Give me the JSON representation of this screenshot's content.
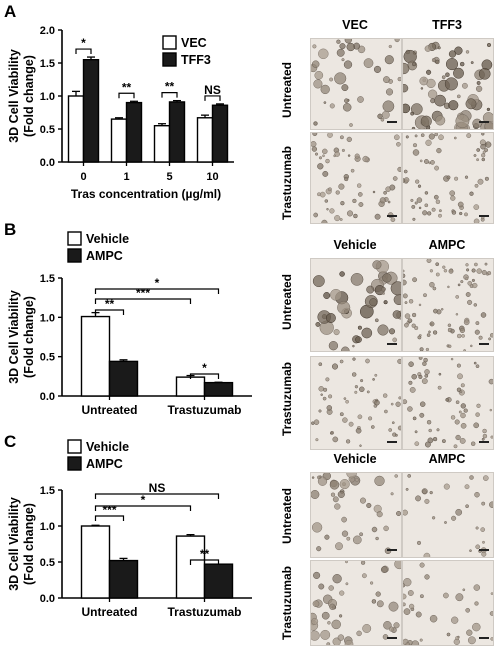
{
  "panels": [
    {
      "id": "A",
      "letter": "A",
      "chart_index": 0,
      "photo": {
        "cols": [
          "VEC",
          "TFF3"
        ],
        "rows": [
          "Untreated",
          "Trastuzumab"
        ]
      }
    },
    {
      "id": "B",
      "letter": "B",
      "chart_index": 1,
      "photo": {
        "cols": [
          "Vehicle",
          "AMPC"
        ],
        "rows": [
          "Untreated",
          "Trastuzumab"
        ]
      }
    },
    {
      "id": "C",
      "letter": "C",
      "chart_index": 2,
      "photo": {
        "cols": [
          "Vehicle",
          "AMPC"
        ],
        "rows": [
          "Untreated",
          "Trastuzumab"
        ]
      }
    }
  ],
  "chart_data": [
    {
      "type": "bar",
      "title": "",
      "ylabel": "3D Cell Viability\n(Fold change)",
      "xlabel": "Tras concentration (µg/ml)",
      "categories": [
        "0",
        "1",
        "5",
        "10"
      ],
      "ylim": [
        0,
        2.0
      ],
      "yticks": [
        0.0,
        0.5,
        1.0,
        1.5,
        2.0
      ],
      "legend_position": "top-right",
      "series": [
        {
          "name": "VEC",
          "color": "#ffffff",
          "values": [
            1.0,
            0.65,
            0.55,
            0.67
          ],
          "errors": [
            0.07,
            0.02,
            0.03,
            0.04
          ]
        },
        {
          "name": "TFF3",
          "color": "#1a1a1a",
          "values": [
            1.55,
            0.9,
            0.91,
            0.86
          ],
          "errors": [
            0.04,
            0.02,
            0.02,
            0.02
          ]
        }
      ],
      "annotations": [
        {
          "text": "*",
          "category": "0"
        },
        {
          "text": "**",
          "category": "1"
        },
        {
          "text": "**",
          "category": "5"
        },
        {
          "text": "NS",
          "category": "10"
        }
      ]
    },
    {
      "type": "bar",
      "title": "",
      "ylabel": "3D Cell Viability\n(Fold change)",
      "xlabel": "",
      "categories": [
        "Untreated",
        "Trastuzumab"
      ],
      "ylim": [
        0,
        1.5
      ],
      "yticks": [
        0.0,
        0.5,
        1.0,
        1.5
      ],
      "legend_position": "top-left",
      "series": [
        {
          "name": "Vehicle",
          "color": "#ffffff",
          "values": [
            1.01,
            0.24
          ],
          "errors": [
            0.05,
            0.02
          ]
        },
        {
          "name": "AMPC",
          "color": "#1a1a1a",
          "values": [
            0.44,
            0.17
          ],
          "errors": [
            0.02,
            0.005
          ]
        }
      ],
      "annotations": [
        {
          "text": "**",
          "from": "Untreated-Vehicle",
          "to": "Untreated-AMPC"
        },
        {
          "text": "***",
          "from": "Untreated-Vehicle",
          "to": "Trastuzumab-Vehicle"
        },
        {
          "text": "*",
          "from": "Untreated-Vehicle",
          "to": "Trastuzumab-AMPC"
        },
        {
          "text": "*",
          "from": "Trastuzumab-Vehicle",
          "to": "Trastuzumab-AMPC"
        }
      ]
    },
    {
      "type": "bar",
      "title": "",
      "ylabel": "3D Cell Viability\n(Fold change)",
      "xlabel": "",
      "categories": [
        "Untreated",
        "Trastuzumab"
      ],
      "ylim": [
        0,
        1.5
      ],
      "yticks": [
        0.0,
        0.5,
        1.0,
        1.5
      ],
      "legend_position": "top-left",
      "series": [
        {
          "name": "Vehicle",
          "color": "#ffffff",
          "values": [
            1.0,
            0.86
          ],
          "errors": [
            0.01,
            0.02
          ]
        },
        {
          "name": "AMPC",
          "color": "#1a1a1a",
          "values": [
            0.52,
            0.47
          ],
          "errors": [
            0.03,
            0.0
          ]
        }
      ],
      "annotations": [
        {
          "text": "***",
          "from": "Untreated-Vehicle",
          "to": "Untreated-AMPC"
        },
        {
          "text": "*",
          "from": "Untreated-Vehicle",
          "to": "Trastuzumab-Vehicle"
        },
        {
          "text": "NS",
          "from": "Untreated-Vehicle",
          "to": "Trastuzumab-AMPC"
        },
        {
          "text": "**",
          "from": "Trastuzumab-Vehicle",
          "to": "Trastuzumab-AMPC"
        }
      ]
    }
  ]
}
